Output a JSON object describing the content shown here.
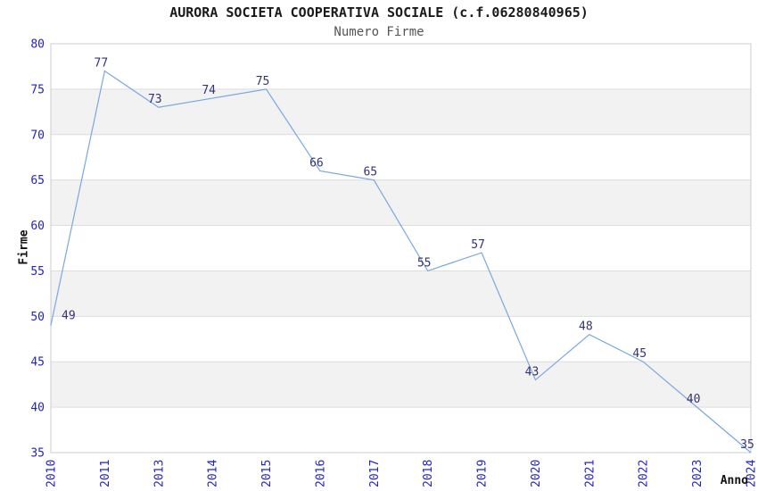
{
  "chart_data": {
    "type": "line",
    "title": "AURORA SOCIETA COOPERATIVA SOCIALE (c.f.06280840965)",
    "subtitle": "Numero Firme",
    "xlabel": "Anno",
    "ylabel": "Firme",
    "categories": [
      "2010",
      "2011",
      "2013",
      "2014",
      "2015",
      "2016",
      "2017",
      "2018",
      "2019",
      "2020",
      "2021",
      "2022",
      "2023",
      "2024"
    ],
    "values": [
      49,
      77,
      73,
      74,
      75,
      66,
      65,
      55,
      57,
      43,
      48,
      45,
      40,
      35
    ],
    "data_labels": [
      "49",
      "77",
      "73",
      "74",
      "75",
      "66",
      "65",
      "55",
      "57",
      "43",
      "48",
      "45",
      "40",
      "35"
    ],
    "ylim": [
      35,
      80
    ],
    "ytick_step": 5,
    "ytick_labels": [
      "35",
      "40",
      "45",
      "50",
      "55",
      "60",
      "65",
      "70",
      "75",
      "80"
    ],
    "grid": true,
    "legend": "none",
    "colors": {
      "line": "#7aa7e0",
      "tick_label": "#2222cc",
      "data_label": "#333377",
      "band_fill": "#f2f2f2",
      "gridline": "#dddddd",
      "plot_border": "#cccccc",
      "title": "#1a1a1a",
      "subtitle": "#555555",
      "axis_title": "#111111",
      "background": "#ffffff"
    }
  }
}
